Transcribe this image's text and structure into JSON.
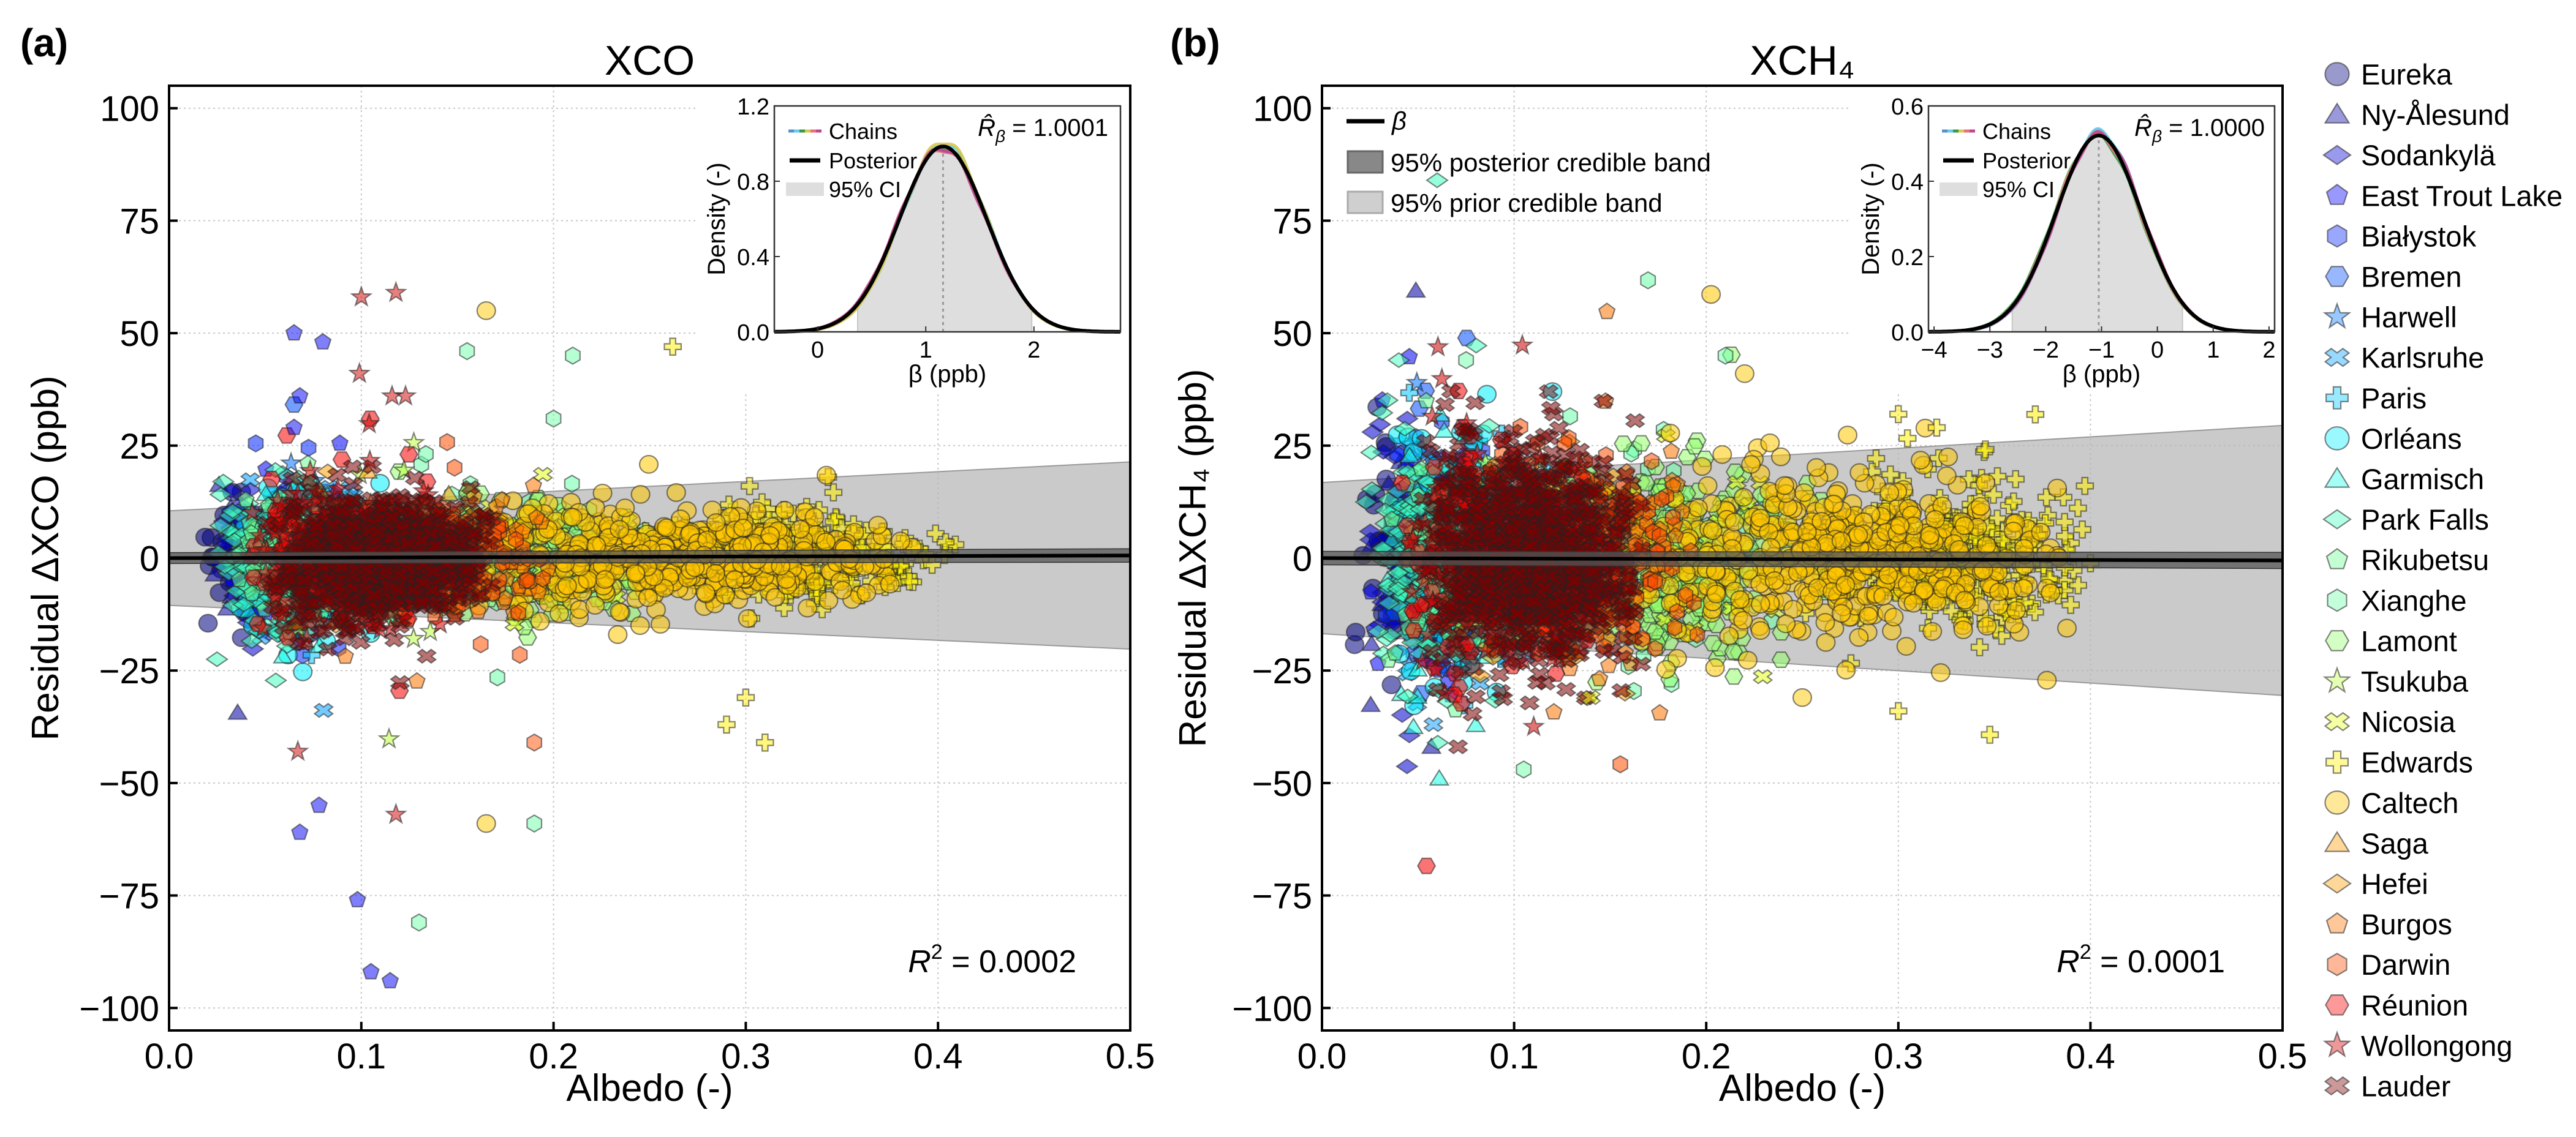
{
  "sites": [
    {
      "name": "Eureka",
      "marker": "circle",
      "color": "#000080",
      "albedo_range": [
        0.015,
        0.05
      ]
    },
    {
      "name": "Ny-Ålesund",
      "marker": "triangle",
      "color": "#0000a8",
      "albedo_range": [
        0.02,
        0.06
      ]
    },
    {
      "name": "Sodankylä",
      "marker": "diamond",
      "color": "#0000d1",
      "albedo_range": [
        0.02,
        0.07
      ]
    },
    {
      "name": "East Trout Lake",
      "marker": "pentagon",
      "color": "#0000fa",
      "albedo_range": [
        0.02,
        0.1
      ]
    },
    {
      "name": "Białystok",
      "marker": "hexagon",
      "color": "#0024ff",
      "albedo_range": [
        0.03,
        0.1
      ]
    },
    {
      "name": "Bremen",
      "marker": "hexagon-flat",
      "color": "#004cff",
      "albedo_range": [
        0.03,
        0.1
      ]
    },
    {
      "name": "Harwell",
      "marker": "star",
      "color": "#0075ff",
      "albedo_range": [
        0.03,
        0.1
      ]
    },
    {
      "name": "Karlsruhe",
      "marker": "x",
      "color": "#009eff",
      "albedo_range": [
        0.04,
        0.13
      ]
    },
    {
      "name": "Paris",
      "marker": "cross",
      "color": "#00c7ff",
      "albedo_range": [
        0.04,
        0.13
      ]
    },
    {
      "name": "Orléans",
      "marker": "circle",
      "color": "#00f0ff",
      "albedo_range": [
        0.03,
        0.12
      ]
    },
    {
      "name": "Garmisch",
      "marker": "triangle",
      "color": "#1affe6",
      "albedo_range": [
        0.03,
        0.1
      ]
    },
    {
      "name": "Park Falls",
      "marker": "diamond",
      "color": "#42ffbd",
      "albedo_range": [
        0.02,
        0.1
      ]
    },
    {
      "name": "Rikubetsu",
      "marker": "pentagon",
      "color": "#6bff94",
      "albedo_range": [
        0.03,
        0.1
      ]
    },
    {
      "name": "Xianghe",
      "marker": "hexagon",
      "color": "#6bffa8",
      "albedo_range": [
        0.08,
        0.25
      ]
    },
    {
      "name": "Lamont",
      "marker": "hexagon-flat",
      "color": "#94ff6b",
      "albedo_range": [
        0.1,
        0.27
      ]
    },
    {
      "name": "Tsukuba",
      "marker": "star",
      "color": "#bdff42",
      "albedo_range": [
        0.05,
        0.15
      ]
    },
    {
      "name": "Nicosia",
      "marker": "x",
      "color": "#e6ff1a",
      "albedo_range": [
        0.12,
        0.25
      ]
    },
    {
      "name": "Edwards",
      "marker": "cross",
      "color": "#fff000",
      "albedo_range": [
        0.24,
        0.41
      ]
    },
    {
      "name": "Caltech",
      "marker": "circle",
      "color": "#ffc700",
      "albedo_range": [
        0.14,
        0.4
      ]
    },
    {
      "name": "Saga",
      "marker": "triangle",
      "color": "#ff9e00",
      "albedo_range": [
        0.05,
        0.15
      ]
    },
    {
      "name": "Hefei",
      "marker": "diamond",
      "color": "#ff9e00",
      "albedo_range": [
        0.06,
        0.18
      ]
    },
    {
      "name": "Burgos",
      "marker": "pentagon",
      "color": "#ff7500",
      "albedo_range": [
        0.06,
        0.2
      ]
    },
    {
      "name": "Darwin",
      "marker": "hexagon",
      "color": "#ff4c00",
      "albedo_range": [
        0.07,
        0.2
      ]
    },
    {
      "name": "Réunion",
      "marker": "hexagon-flat",
      "color": "#fa0000",
      "albedo_range": [
        0.04,
        0.15
      ]
    },
    {
      "name": "Wollongong",
      "marker": "star",
      "color": "#d10000",
      "albedo_range": [
        0.04,
        0.16
      ]
    },
    {
      "name": "Lauder",
      "marker": "x",
      "color": "#800000",
      "albedo_range": [
        0.05,
        0.17
      ]
    }
  ],
  "chart_data": [
    {
      "panel_label": "(a)",
      "type": "scatter",
      "title": "XCO",
      "xlabel": "Albedo (-)",
      "ylabel": "Residual ΔXCO (ppb)",
      "xlim": [
        0,
        0.5
      ],
      "ylim": [
        -105,
        105
      ],
      "xticks": [
        0,
        0.1,
        0.2,
        0.3,
        0.4,
        0.5
      ],
      "xtick_labels": [
        "0.0",
        "0.1",
        "0.2",
        "0.3",
        "0.4",
        "0.5"
      ],
      "yticks": [
        -100,
        -75,
        -50,
        -25,
        0,
        25,
        50,
        75,
        100
      ],
      "ytick_labels": [
        "−100",
        "−75",
        "−50",
        "−25",
        "0",
        "25",
        "50",
        "75",
        "100"
      ],
      "grid": true,
      "beta_line": {
        "intercept": 0,
        "slope": 1.16
      },
      "posterior_band_halfwidth": {
        "at_0": 1.2,
        "at_0.5": 1.5
      },
      "prior_band_halfwidth": {
        "at_0": 10.5,
        "at_0.5": 20.8
      },
      "r2": {
        "symbol": "R",
        "exp": "2",
        "text": " = 0.0002"
      },
      "outliers": [
        {
          "site": "Wollongong",
          "albedo": 0.1,
          "residual": 58
        },
        {
          "site": "Wollongong",
          "albedo": 0.118,
          "residual": 59
        },
        {
          "site": "Wollongong",
          "albedo": 0.099,
          "residual": 41
        },
        {
          "site": "Wollongong",
          "albedo": 0.116,
          "residual": 36
        },
        {
          "site": "Wollongong",
          "albedo": 0.123,
          "residual": 36
        },
        {
          "site": "Wollongong",
          "albedo": 0.118,
          "residual": -57
        },
        {
          "site": "Wollongong",
          "albedo": 0.067,
          "residual": -43
        },
        {
          "site": "Caltech",
          "albedo": 0.165,
          "residual": 55
        },
        {
          "site": "Caltech",
          "albedo": 0.165,
          "residual": -59
        },
        {
          "site": "Edwards",
          "albedo": 0.262,
          "residual": 47
        },
        {
          "site": "Edwards",
          "albedo": 0.29,
          "residual": -37
        },
        {
          "site": "Edwards",
          "albedo": 0.31,
          "residual": -41
        },
        {
          "site": "Edwards",
          "albedo": 0.3,
          "residual": -31
        },
        {
          "site": "Edwards",
          "albedo": 0.302,
          "residual": 16
        },
        {
          "site": "East Trout Lake",
          "albedo": 0.065,
          "residual": 50
        },
        {
          "site": "East Trout Lake",
          "albedo": 0.08,
          "residual": 48
        },
        {
          "site": "East Trout Lake",
          "albedo": 0.068,
          "residual": 36
        },
        {
          "site": "East Trout Lake",
          "albedo": 0.065,
          "residual": 29
        },
        {
          "site": "East Trout Lake",
          "albedo": 0.098,
          "residual": -76
        },
        {
          "site": "East Trout Lake",
          "albedo": 0.105,
          "residual": -92
        },
        {
          "site": "East Trout Lake",
          "albedo": 0.115,
          "residual": -94
        },
        {
          "site": "East Trout Lake",
          "albedo": 0.068,
          "residual": -61
        },
        {
          "site": "East Trout Lake",
          "albedo": 0.078,
          "residual": -55
        },
        {
          "site": "Xianghe",
          "albedo": 0.155,
          "residual": 46
        },
        {
          "site": "Xianghe",
          "albedo": 0.21,
          "residual": 45
        },
        {
          "site": "Xianghe",
          "albedo": 0.13,
          "residual": -81
        },
        {
          "site": "Xianghe",
          "albedo": 0.19,
          "residual": -59
        },
        {
          "site": "Xianghe",
          "albedo": 0.2,
          "residual": 31
        },
        {
          "site": "Darwin",
          "albedo": 0.19,
          "residual": -41
        }
      ],
      "inset": {
        "type": "line",
        "xlabel": "β (ppb)",
        "ylabel": "Density (-)",
        "xlim": [
          -0.4,
          2.8
        ],
        "ylim": [
          0,
          1.2
        ],
        "xticks": [
          0,
          1,
          2
        ],
        "xtick_labels": [
          "0",
          "1",
          "2"
        ],
        "yticks": [
          0,
          0.4,
          0.8,
          1.2
        ],
        "ytick_labels": [
          "0.0",
          "0.4",
          "0.8",
          "1.2"
        ],
        "posterior_mean": 1.16,
        "posterior_sd": 0.405,
        "ci95": [
          0.37,
          1.98
        ],
        "legend": {
          "chains": "Chains",
          "posterior": "Posterior",
          "ci": "95% CI"
        },
        "rhat": {
          "symbol": "R̂",
          "sub": "β",
          "text": " = 1.0001"
        },
        "chain_colors": [
          "#5b8fd0",
          "#68cde8",
          "#3a9a4a",
          "#d8c850",
          "#e87080",
          "#c04890"
        ]
      }
    },
    {
      "panel_label": "(b)",
      "type": "scatter",
      "title": "XCH₄",
      "xlabel": "Albedo (-)",
      "ylabel": "Residual ΔXCH₄ (ppb)",
      "xlim": [
        0,
        0.5
      ],
      "ylim": [
        -105,
        105
      ],
      "xticks": [
        0,
        0.1,
        0.2,
        0.3,
        0.4,
        0.5
      ],
      "xtick_labels": [
        "0.0",
        "0.1",
        "0.2",
        "0.3",
        "0.4",
        "0.5"
      ],
      "yticks": [
        -100,
        -75,
        -50,
        -25,
        0,
        25,
        50,
        75,
        100
      ],
      "ytick_labels": [
        "−100",
        "−75",
        "−50",
        "−25",
        "0",
        "25",
        "50",
        "75",
        "100"
      ],
      "grid": true,
      "beta_line": {
        "intercept": 0,
        "slope": -1.05
      },
      "posterior_band_halfwidth": {
        "at_0": 1.5,
        "at_0.5": 1.8
      },
      "prior_band_halfwidth": {
        "at_0": 16.8,
        "at_0.5": 30.0
      },
      "legend": {
        "beta": "β",
        "posterior_band": "95% posterior credible band",
        "prior_band": "95% prior credible band"
      },
      "r2": {
        "symbol": "R",
        "exp": "2",
        "text": " = 0.0001"
      },
      "outliers": [
        {
          "site": "Xianghe",
          "albedo": 0.105,
          "residual": -47
        },
        {
          "site": "Caltech",
          "albedo": 0.25,
          "residual": -31
        },
        {
          "site": "Edwards",
          "albedo": 0.3,
          "residual": -34
        },
        {
          "site": "Caltech",
          "albedo": 0.22,
          "residual": 41
        },
        {
          "site": "Xianghe",
          "albedo": 0.21,
          "residual": 45
        },
        {
          "site": "Xianghe",
          "albedo": 0.075,
          "residual": 44
        },
        {
          "site": "Park Falls",
          "albedo": 0.04,
          "residual": 44
        },
        {
          "site": "Orléans",
          "albedo": 0.12,
          "residual": 37
        },
        {
          "site": "Edwards",
          "albedo": 0.3,
          "residual": 32
        },
        {
          "site": "Edwards",
          "albedo": 0.32,
          "residual": 29
        },
        {
          "site": "Lauder",
          "albedo": 0.118,
          "residual": 37
        },
        {
          "site": "Karlsruhe",
          "albedo": 0.058,
          "residual": -37
        },
        {
          "site": "Nicosia",
          "albedo": 0.14,
          "residual": -31
        }
      ],
      "inset": {
        "type": "line",
        "xlabel": "β (ppb)",
        "ylabel": "Density (-)",
        "xlim": [
          -4.1,
          2.1
        ],
        "ylim": [
          0,
          0.6
        ],
        "xticks": [
          -4,
          -3,
          -2,
          -1,
          0,
          1,
          2
        ],
        "xtick_labels": [
          "−4",
          "−3",
          "−2",
          "−1",
          "0",
          "1",
          "2"
        ],
        "yticks": [
          0,
          0.2,
          0.4,
          0.6
        ],
        "ytick_labels": [
          "0.0",
          "0.2",
          "0.4",
          "0.6"
        ],
        "posterior_mean": -1.05,
        "posterior_sd": 0.765,
        "ci95": [
          -2.6,
          0.45
        ],
        "legend": {
          "chains": "Chains",
          "posterior": "Posterior",
          "ci": "95% CI"
        },
        "rhat": {
          "symbol": "R̂",
          "sub": "β",
          "text": " = 1.0000"
        },
        "chain_colors": [
          "#5b8fd0",
          "#68cde8",
          "#3a9a4a",
          "#d8c850",
          "#e87080",
          "#c04890"
        ]
      }
    }
  ]
}
